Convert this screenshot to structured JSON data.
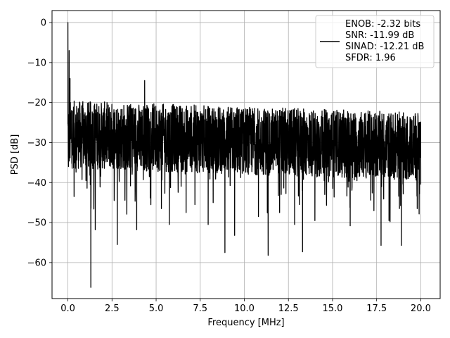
{
  "chart_data": {
    "type": "line",
    "title": "",
    "xlabel": "Frequency [MHz]",
    "ylabel": "PSD [dB]",
    "xlim": [
      -0.9,
      21.1
    ],
    "ylim": [
      -69,
      3
    ],
    "xticks": [
      0.0,
      2.5,
      5.0,
      7.5,
      10.0,
      12.5,
      15.0,
      17.5,
      20.0
    ],
    "xtick_labels": [
      "0.0",
      "2.5",
      "5.0",
      "7.5",
      "10.0",
      "12.5",
      "15.0",
      "17.5",
      "20.0"
    ],
    "yticks": [
      0,
      -10,
      -20,
      -30,
      -40,
      -50,
      -60
    ],
    "ytick_labels": [
      "0",
      "−10",
      "−20",
      "−30",
      "−40",
      "−50",
      "−60"
    ],
    "grid": true,
    "legend_position": "top-right",
    "series": [
      {
        "color": "#000000",
        "x_range": [
          0.0,
          20.0
        ],
        "envelope": "noise floor approx -20 to -40 dB, slowly rising from about -28 dB near 0 MHz to -31 dB near 20 MHz",
        "peak": [
          0.0,
          0.0
        ],
        "notable_points": [
          [
            0.0,
            0.0
          ],
          [
            0.03,
            -36
          ],
          [
            0.07,
            -7
          ],
          [
            0.12,
            -14
          ],
          [
            0.2,
            -22
          ],
          [
            0.35,
            -43.5
          ],
          [
            1.3,
            -66.2
          ],
          [
            1.55,
            -51.8
          ],
          [
            2.8,
            -55.5
          ],
          [
            3.9,
            -51.8
          ],
          [
            4.35,
            -14.5
          ],
          [
            5.3,
            -46.5
          ],
          [
            5.75,
            -50.5
          ],
          [
            6.7,
            -47.5
          ],
          [
            7.2,
            -45.5
          ],
          [
            7.95,
            -50.5
          ],
          [
            8.9,
            -57.5
          ],
          [
            9.45,
            -53.2
          ],
          [
            10.8,
            -48.5
          ],
          [
            11.35,
            -58.2
          ],
          [
            12.0,
            -47.5
          ],
          [
            12.85,
            -50.5
          ],
          [
            13.3,
            -57.3
          ],
          [
            14.0,
            -49.5
          ],
          [
            16.0,
            -50.8
          ],
          [
            17.75,
            -55.7
          ],
          [
            18.2,
            -49.5
          ],
          [
            18.9,
            -55.7
          ],
          [
            19.8,
            -46.5
          ],
          [
            20.0,
            -40.5
          ]
        ]
      }
    ],
    "legend": {
      "lines": [
        "ENOB: -2.32 bits",
        "SNR: -11.99 dB",
        "SINAD: -12.21 dB",
        "SFDR: 1.96"
      ]
    }
  }
}
